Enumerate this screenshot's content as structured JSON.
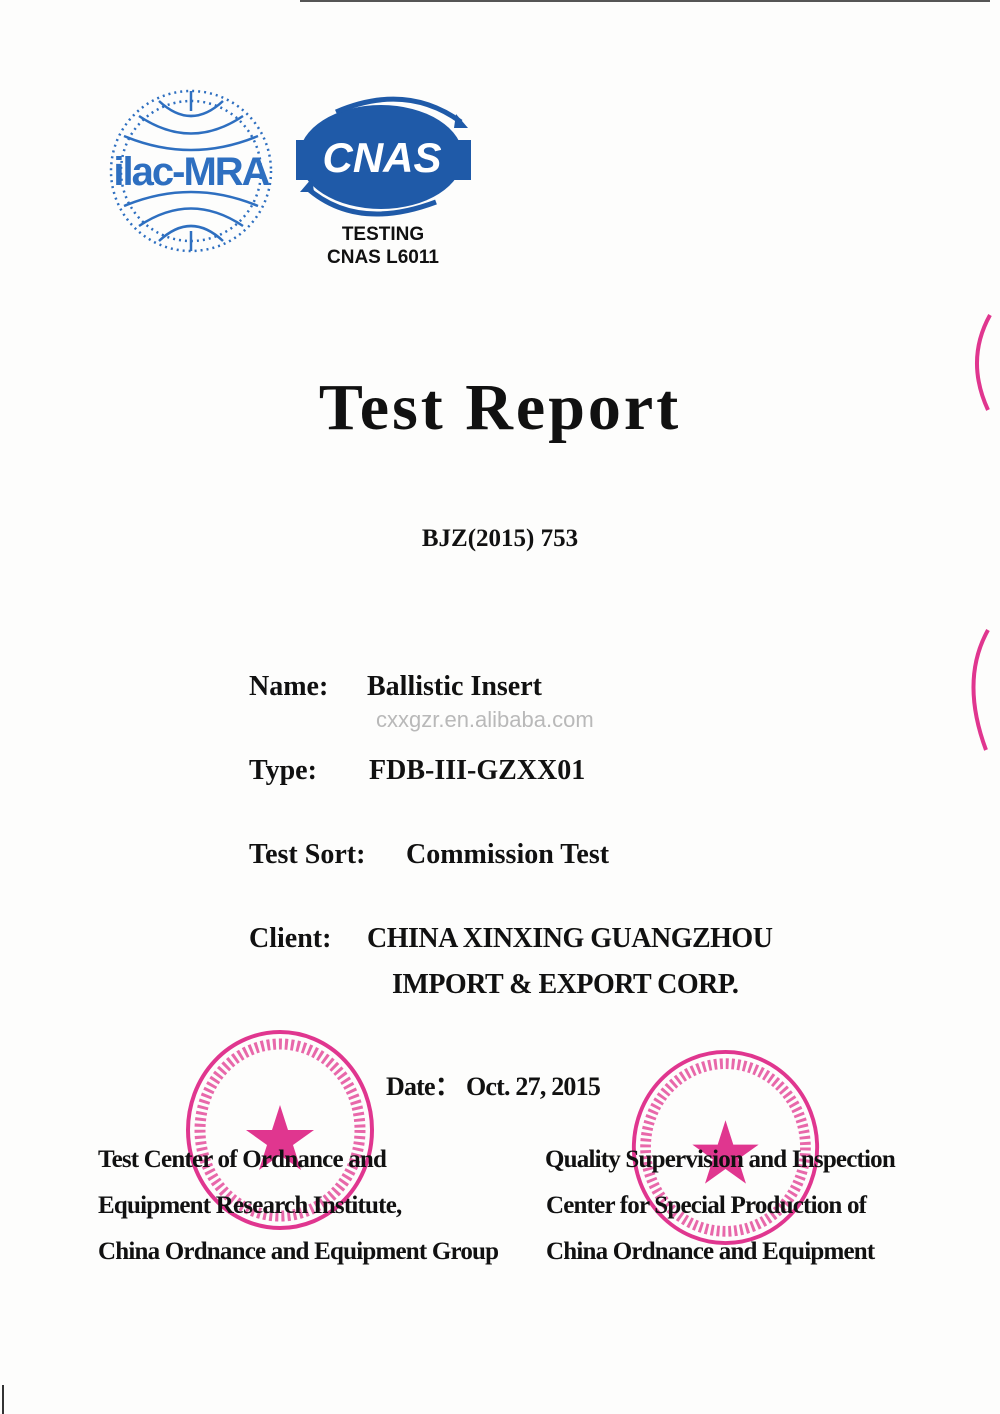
{
  "logos": {
    "ilac": {
      "text": "ilac-MRA",
      "color": "#2e6fc0"
    },
    "cnas": {
      "text": "CNAS",
      "color": "#1f5aa8",
      "line1": "TESTING",
      "line2": "CNAS L6011"
    }
  },
  "document": {
    "title": "Test Report",
    "number": "BJZ(2015) 753",
    "watermark": "cxxgzr.en.alibaba.com"
  },
  "fields": {
    "name_label": "Name:",
    "name_value": "Ballistic Insert",
    "type_label": "Type:",
    "type_value": "FDB-III-GZXX01",
    "sort_label": "Test Sort:",
    "sort_value": "Commission Test",
    "client_label": "Client:",
    "client_line1": "CHINA XINXING GUANGZHOU",
    "client_line2": "IMPORT & EXPORT CORP."
  },
  "date": {
    "label": "Date：",
    "value": "Oct. 27, 2015"
  },
  "issuers": {
    "left": [
      "Test Center of Ordnance and",
      "Equipment Research Institute,",
      "China Ordnance and Equipment Group"
    ],
    "right": [
      "Quality Supervision and Inspection",
      "Center for Special Production of",
      "China Ordnance and Equipment"
    ]
  },
  "stamps": {
    "color": "#e0368f",
    "left_text": "TEST CENTER OF ORDNANCE AND EQUIPMENT RESEARCH INSTITUTE CHINA ORDNANCE AND EQUIPMENT GROUP",
    "right_text": "QUALITY SUPERVISION AND INSPECTION CENTER FOR SPECIAL PRODUCTION OF CHINA ORDNANCE AND EQUIPMENT"
  }
}
